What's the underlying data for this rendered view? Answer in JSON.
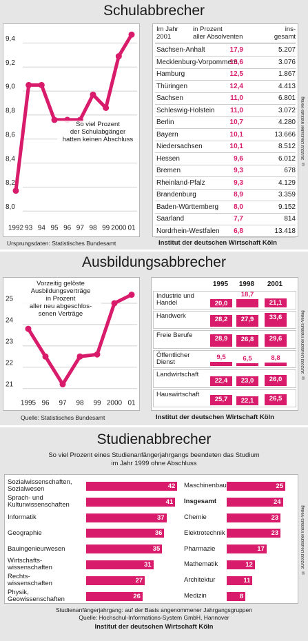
{
  "sections": [
    {
      "title": "Schulabbrecher",
      "source": "Ursprungsdaten: Statistisches Bundesamt",
      "publisher": "Institut der deutschen Wirtschaft Köln",
      "copyright": "© 30/2003 Deutscher Instituts-Verlag"
    },
    {
      "title": "Ausbildungsabbrecher",
      "source": "Quelle: Statistisches Bundesamt",
      "publisher": "Institut der deutschen Wirtschaft Köln",
      "copyright": "© 30/2003 Deutscher Instituts-Verlag"
    },
    {
      "title": "Studienabbrecher",
      "subtitle": "So viel Prozent eines Studienanfängerjahrgangs beendeten das Studium\nim Jahr 1999 ohne Abschluss",
      "notes": [
        "Studienanfängerjahrgang: auf der Basis angenommener Jahrgangsgruppen",
        "Quelle: Hochschul-Informations-System GmbH, Hannover"
      ],
      "publisher": "Institut der deutschen Wirtschaft Köln",
      "copyright": "© 30/2003 Deutscher Instituts-Verlag"
    }
  ],
  "table": {
    "header": [
      "Im Jahr\n2001",
      "in Prozent\naller Absolventen",
      "ins-\ngesamt"
    ],
    "rows": [
      [
        "Sachsen-Anhalt",
        "17,9",
        "5.207"
      ],
      [
        "Mecklenburg-Vorpommern",
        "13,6",
        "3.076"
      ],
      [
        "Hamburg",
        "12,5",
        "1.867"
      ],
      [
        "Thüringen",
        "12,4",
        "4.413"
      ],
      [
        "Sachsen",
        "11,0",
        "6.801"
      ],
      [
        "Schleswig-Holstein",
        "11,0",
        "3.072"
      ],
      [
        "Berlin",
        "10,7",
        "4.280"
      ],
      [
        "Bayern",
        "10,1",
        "13.666"
      ],
      [
        "Niedersachsen",
        "10,1",
        "8.512"
      ],
      [
        "Hessen",
        "9,6",
        "6.012"
      ],
      [
        "Bremen",
        "9,3",
        "678"
      ],
      [
        "Rheinland-Pfalz",
        "9,3",
        "4.129"
      ],
      [
        "Brandenburg",
        "8,9",
        "3.359"
      ],
      [
        "Baden-Württemberg",
        "8,0",
        "9.152"
      ],
      [
        "Saarland",
        "7,7",
        "814"
      ],
      [
        "Nordrhein-Westfalen",
        "6,8",
        "13.418"
      ]
    ]
  },
  "chart_data": [
    {
      "type": "line",
      "annotation": "So viel Prozent\nder Schulabgänger\nhatten keinen Abschluss",
      "categories": [
        "1992",
        "93",
        "94",
        "95",
        "96",
        "97",
        "98",
        "99",
        "2000",
        "01"
      ],
      "series": [
        {
          "color": "#d81b6a",
          "values": [
            8.17,
            9.05,
            9.05,
            8.76,
            8.76,
            8.76,
            8.97,
            8.86,
            9.29,
            9.47
          ]
        }
      ],
      "ylim": [
        7.95,
        9.5
      ],
      "yticks": [
        {
          "value": 8.0,
          "label": "8,0"
        },
        {
          "value": 8.2,
          "label": "8,2"
        },
        {
          "value": 8.4,
          "label": "8,4"
        },
        {
          "value": 8.6,
          "label": "8,6"
        },
        {
          "value": 8.8,
          "label": "8,8"
        },
        {
          "value": 9.0,
          "label": "9,0"
        },
        {
          "value": 9.2,
          "label": "9,2"
        },
        {
          "value": 9.4,
          "label": "9,4"
        }
      ],
      "grid": true
    },
    {
      "type": "line",
      "annotation": "Vorzeitig gelöste\nAusbildungsverträge\nin Prozent\naller neu abgeschlos-\nsenen Verträge",
      "categories": [
        "1995",
        "96",
        "97",
        "98",
        "99",
        "2000",
        "01"
      ],
      "series": [
        {
          "color": "#d81b6a",
          "values": [
            23.8,
            22.5,
            21.2,
            22.5,
            22.6,
            25.0,
            25.4
          ]
        }
      ],
      "ylim": [
        20.7,
        26
      ],
      "yticks": [
        21,
        22,
        23,
        24,
        25
      ],
      "grid": true
    },
    {
      "type": "bar",
      "categories": [
        "Industrie und\nHandel",
        "Handwerk",
        "Freie Berufe",
        "Öffentlicher\nDienst",
        "Landwirtschaft",
        "Hauswirtschaft"
      ],
      "series": [
        {
          "name": "1995",
          "color": "#d81b6a",
          "values": [
            20.0,
            28.2,
            28.9,
            9.5,
            22.4,
            25.7
          ],
          "value_labels": [
            "20,0",
            "28,2",
            "28,9",
            "9,5",
            "22,4",
            "25,7"
          ]
        },
        {
          "name": "1998",
          "color": "#d81b6a",
          "values": [
            18.7,
            27.9,
            26.8,
            6.5,
            23.0,
            22.1
          ],
          "value_labels": [
            "18,7",
            "27,9",
            "26,8",
            "6,5",
            "23,0",
            "22,1"
          ]
        },
        {
          "name": "2001",
          "color": "#d81b6a",
          "values": [
            21.1,
            33.6,
            29.6,
            8.8,
            26.0,
            26.5
          ],
          "value_labels": [
            "21,1",
            "33,6",
            "29,6",
            "8,8",
            "26,0",
            "26,5"
          ]
        }
      ]
    },
    {
      "type": "hbar",
      "color": "#d81b6a",
      "categories": [
        "Sozialwissenschaften,\nSozialwesen",
        "Sprach- und\nKulturwissenschaften",
        "Informatik",
        "Geographie",
        "Bauingenieurwesen",
        "Wirtschafts-\nwissenschaften",
        "Rechts-\nwissenschaften",
        "Physik,\nGeowissenschaften"
      ],
      "values": [
        42,
        41,
        37,
        36,
        35,
        31,
        27,
        26
      ]
    },
    {
      "type": "hbar",
      "color": "#d81b6a",
      "highlight_index": 1,
      "categories": [
        "Maschinenbau",
        "Insgesamt",
        "Chemie",
        "Elektrotechnik",
        "Pharmazie",
        "Mathematik",
        "Architektur",
        "Medizin"
      ],
      "values": [
        25,
        24,
        23,
        23,
        17,
        12,
        11,
        8
      ]
    }
  ]
}
